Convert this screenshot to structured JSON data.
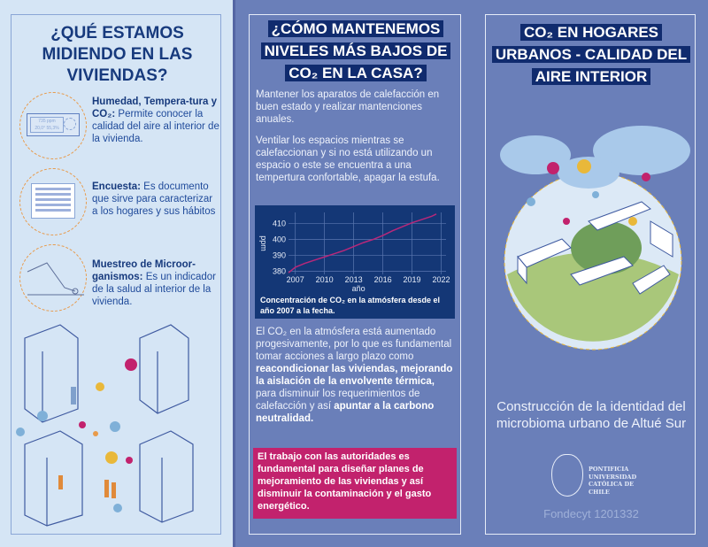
{
  "left": {
    "title": "¿QUÉ ESTAMOS MIDIENDO EN LAS VIVIENDAS?",
    "items": [
      {
        "label": "Humedad, Tempera-tura y CO₂:",
        "text": " Permite conocer la calidad del aire al interior de la vivienda.",
        "icon": "co2-meter-icon",
        "meter_ppm": "735 ppm",
        "meter_temp": "20,0°",
        "meter_hum": "55,3%"
      },
      {
        "label": "Encuesta:",
        "text": " Es documento que sirve para caracterizar a los hogares y sus hábitos",
        "icon": "survey-document-icon"
      },
      {
        "label": "Muestreo de Microor-ganismos:",
        "text": " Es un indicador de la salud al interior de la vivienda.",
        "icon": "swab-sampling-icon"
      }
    ]
  },
  "middle": {
    "title": "¿CÓMO MANTENEMOS NIVELES MÁS BAJOS DE CO₂ EN LA CASA?",
    "p1": "Mantener los aparatos de calefacción en buen estado y realizar mantenciones anuales.",
    "p2": "Ventilar los espacios mientras se calefaccionan y si no está utilizando un espacio o este se encuentra a una tempertura confortable, apagar la estufa.",
    "p3_a": "El CO₂ en la atmósfera está aumentado progesivamente, por lo que es fundamental tomar acciones a largo plazo como ",
    "p3_b": "reacondicionar las viviendas, mejorando la aislación de la envolvente térmica,",
    "p3_c": " para disminuir los requerimientos de calefacción y así ",
    "p3_d": "apuntar a la carbono neutralidad.",
    "highlight": "El trabajo con las autoridades es fundamental para diseñar planes de mejoramiento de las viviendas y así disminuir la contaminación y el gasto energético.",
    "highlight_color": "#c2226d"
  },
  "chart_data": {
    "type": "line",
    "title": "",
    "caption": "Concentración de CO₂ en la atmósfera desde el año 2007 a la fecha.",
    "xlabel": "año",
    "ylabel": "ppm",
    "x": [
      2006.3,
      2007,
      2008,
      2009,
      2010,
      2011,
      2012,
      2013,
      2014,
      2015,
      2016,
      2017,
      2018,
      2019,
      2020,
      2021,
      2021.5
    ],
    "values": [
      379,
      382.5,
      385,
      387,
      389,
      391,
      393,
      395.5,
      398,
      400,
      402.5,
      405.5,
      408,
      410.5,
      412.5,
      414.5,
      416
    ],
    "xticks": [
      2007,
      2010,
      2013,
      2016,
      2019,
      2022
    ],
    "yticks": [
      380,
      390,
      400,
      410
    ],
    "xlim": [
      2006.3,
      2022.5
    ],
    "ylim": [
      378,
      417
    ],
    "grid": true,
    "line_color": "#b8287a"
  },
  "right": {
    "title": "CO₂ EN HOGARES URBANOS - CALIDAD DEL AIRE INTERIOR",
    "subtitle": "Construcción de la identidad del microbioma urbano de Altué Sur",
    "logo_text": "PONTIFICIA UNIVERSIDAD CATÓLICA DE CHILE",
    "grant": "Fondecyt 1201332"
  }
}
